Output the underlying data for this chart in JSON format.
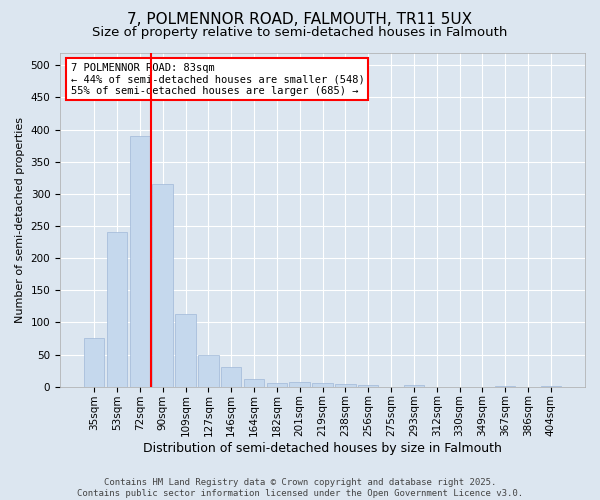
{
  "title1": "7, POLMENNOR ROAD, FALMOUTH, TR11 5UX",
  "title2": "Size of property relative to semi-detached houses in Falmouth",
  "xlabel": "Distribution of semi-detached houses by size in Falmouth",
  "ylabel": "Number of semi-detached properties",
  "categories": [
    "35sqm",
    "53sqm",
    "72sqm",
    "90sqm",
    "109sqm",
    "127sqm",
    "146sqm",
    "164sqm",
    "182sqm",
    "201sqm",
    "219sqm",
    "238sqm",
    "256sqm",
    "275sqm",
    "293sqm",
    "312sqm",
    "330sqm",
    "349sqm",
    "367sqm",
    "386sqm",
    "404sqm"
  ],
  "values": [
    75,
    240,
    390,
    315,
    113,
    50,
    30,
    12,
    6,
    8,
    6,
    4,
    2,
    0,
    2,
    0,
    0,
    0,
    1,
    0,
    1
  ],
  "bar_color": "#c5d8ed",
  "bar_edgecolor": "#a0b8d8",
  "vline_x": 2.5,
  "vline_color": "red",
  "annotation_text": "7 POLMENNOR ROAD: 83sqm\n← 44% of semi-detached houses are smaller (548)\n55% of semi-detached houses are larger (685) →",
  "annotation_box_color": "white",
  "annotation_box_edgecolor": "red",
  "ylim": [
    0,
    520
  ],
  "yticks": [
    0,
    50,
    100,
    150,
    200,
    250,
    300,
    350,
    400,
    450,
    500
  ],
  "background_color": "#dce6f0",
  "plot_background_color": "#dce6f0",
  "grid_color": "white",
  "footer_text": "Contains HM Land Registry data © Crown copyright and database right 2025.\nContains public sector information licensed under the Open Government Licence v3.0.",
  "title1_fontsize": 11,
  "title2_fontsize": 9.5,
  "xlabel_fontsize": 9,
  "ylabel_fontsize": 8,
  "tick_fontsize": 7.5,
  "footer_fontsize": 6.5,
  "annotation_fontsize": 7.5
}
